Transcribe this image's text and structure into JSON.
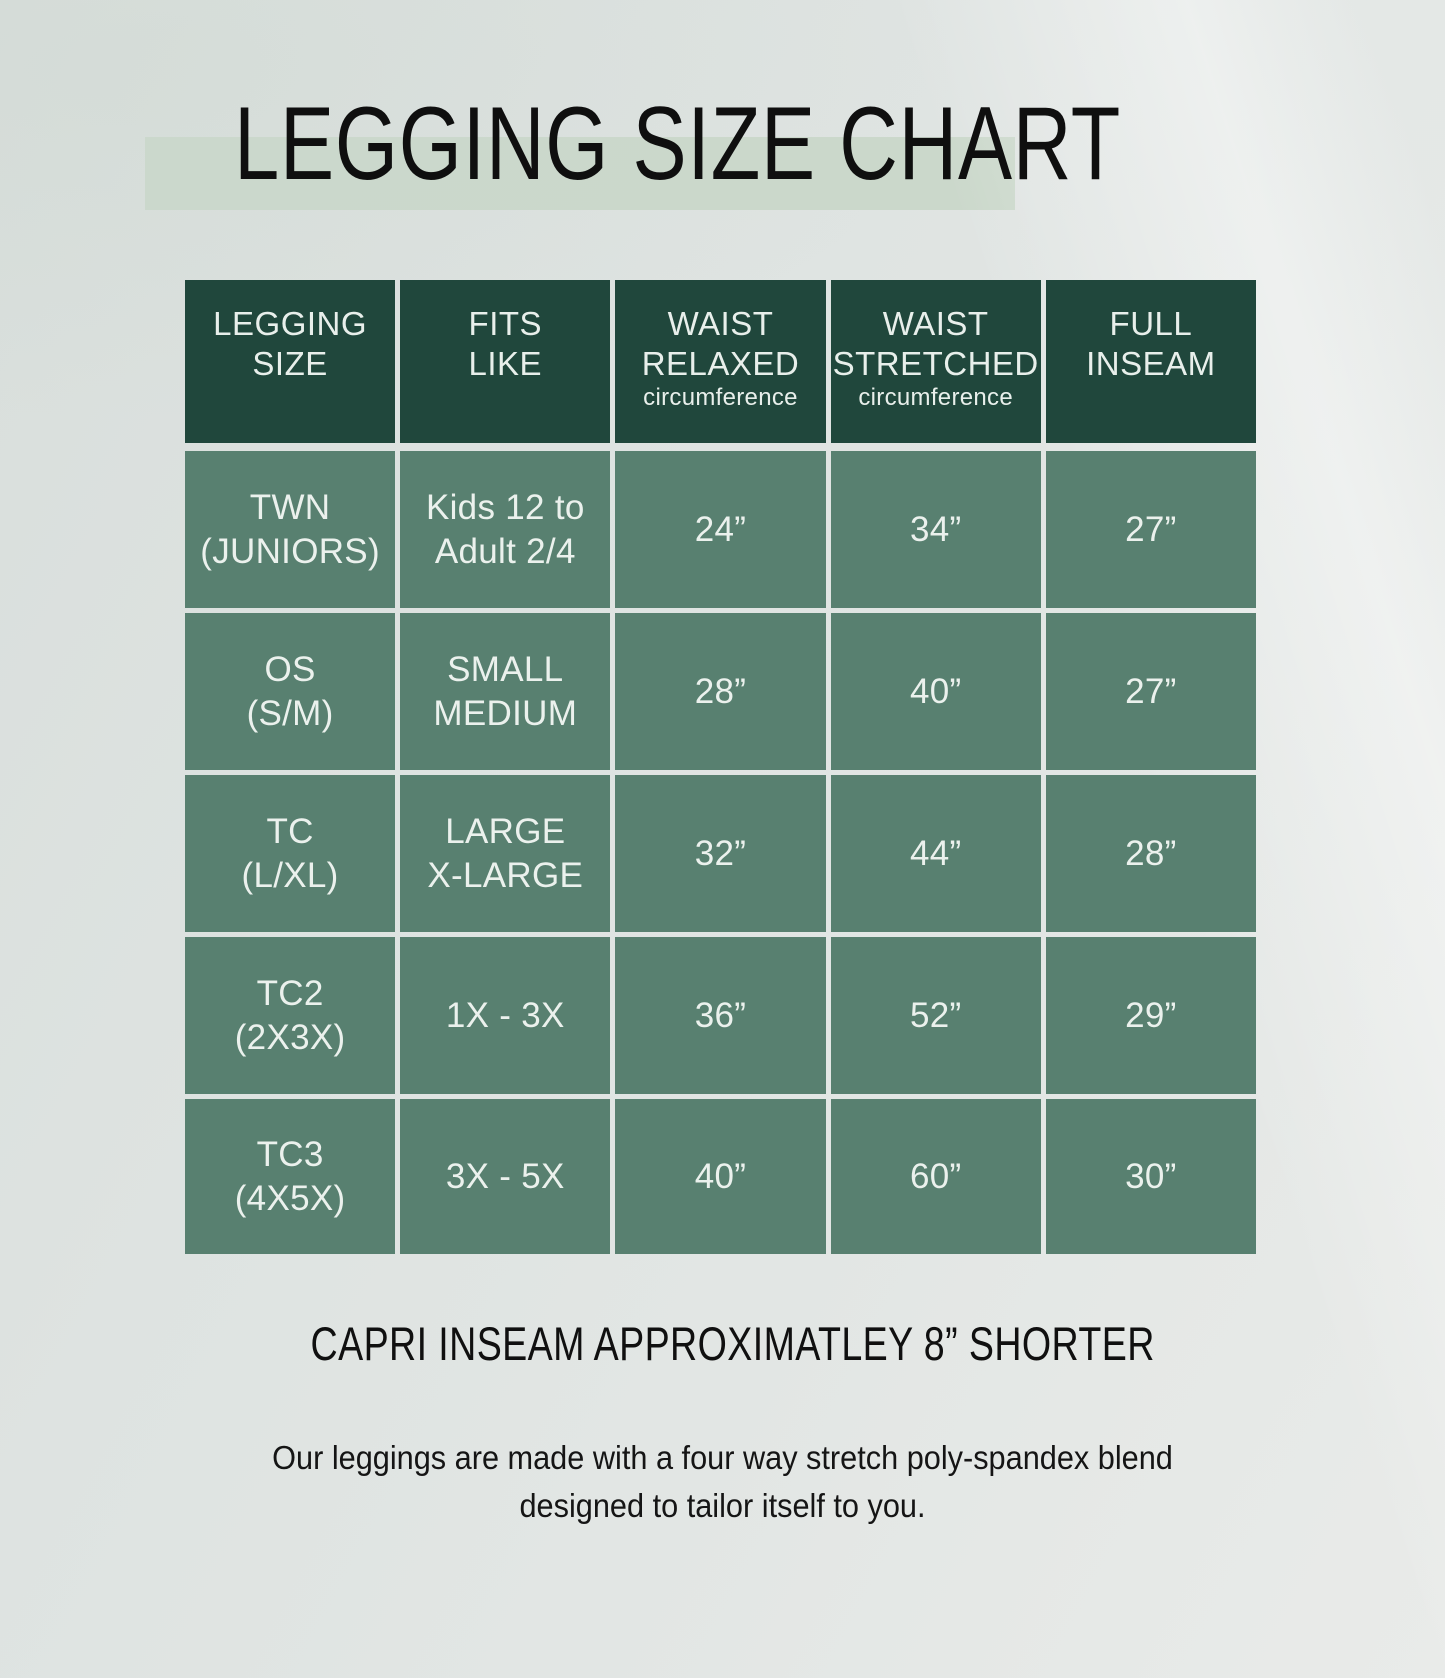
{
  "title": "LEGGING SIZE CHART",
  "colors": {
    "background": "#dee3e1",
    "title_band_green": "#cbd8cb",
    "header_green": "#20473c",
    "row_green": "#588070",
    "table_text": "#ebf1ed",
    "body_text": "#101010"
  },
  "table": {
    "columns": [
      {
        "h1": "LEGGING",
        "h2": "SIZE",
        "sub": ""
      },
      {
        "h1": "FITS",
        "h2": "LIKE",
        "sub": ""
      },
      {
        "h1": "WAIST",
        "h2": "RELAXED",
        "sub": "circumference"
      },
      {
        "h1": "WAIST",
        "h2": "STRETCHED",
        "sub": "circumference"
      },
      {
        "h1": "FULL",
        "h2": "INSEAM",
        "sub": ""
      }
    ],
    "rows": [
      {
        "size1": "TWN",
        "size2": "(JUNIORS)",
        "fits1": "Kids 12 to",
        "fits2": "Adult 2/4",
        "relaxed": "24”",
        "stretched": "34”",
        "inseam": "27”"
      },
      {
        "size1": "OS",
        "size2": "(S/M)",
        "fits1": "SMALL",
        "fits2": "MEDIUM",
        "relaxed": "28”",
        "stretched": "40”",
        "inseam": "27”"
      },
      {
        "size1": "TC",
        "size2": "(L/XL)",
        "fits1": "LARGE",
        "fits2": "X-LARGE",
        "relaxed": "32”",
        "stretched": "44”",
        "inseam": "28”"
      },
      {
        "size1": "TC2",
        "size2": "(2X3X)",
        "fits1": "1X - 3X",
        "fits2": "",
        "relaxed": "36”",
        "stretched": "52”",
        "inseam": "29”"
      },
      {
        "size1": "TC3",
        "size2": "(4X5X)",
        "fits1": "3X - 5X",
        "fits2": "",
        "relaxed": "40”",
        "stretched": "60”",
        "inseam": "30”"
      }
    ]
  },
  "footer": {
    "note": "CAPRI INSEAM APPROXIMATLEY 8” SHORTER",
    "description1": "Our leggings are made with a four way stretch poly-spandex blend",
    "description2": "designed to tailor itself to you."
  },
  "chart_data": {
    "type": "table",
    "title": "LEGGING SIZE CHART",
    "columns": [
      "LEGGING SIZE",
      "FITS LIKE",
      "WAIST RELAXED circumference",
      "WAIST STRETCHED circumference",
      "FULL INSEAM"
    ],
    "rows": [
      [
        "TWN (JUNIORS)",
        "Kids 12 to Adult 2/4",
        "24”",
        "34”",
        "27”"
      ],
      [
        "OS (S/M)",
        "SMALL MEDIUM",
        "28”",
        "40”",
        "27”"
      ],
      [
        "TC (L/XL)",
        "LARGE X-LARGE",
        "32”",
        "44”",
        "28”"
      ],
      [
        "TC2 (2X3X)",
        "1X - 3X",
        "36”",
        "52”",
        "29”"
      ],
      [
        "TC3 (4X5X)",
        "3X - 5X",
        "40”",
        "60”",
        "30”"
      ]
    ],
    "notes": [
      "CAPRI INSEAM APPROXIMATLEY 8” SHORTER",
      "Our leggings are made with a four way stretch poly-spandex blend designed to tailor itself to you."
    ]
  }
}
